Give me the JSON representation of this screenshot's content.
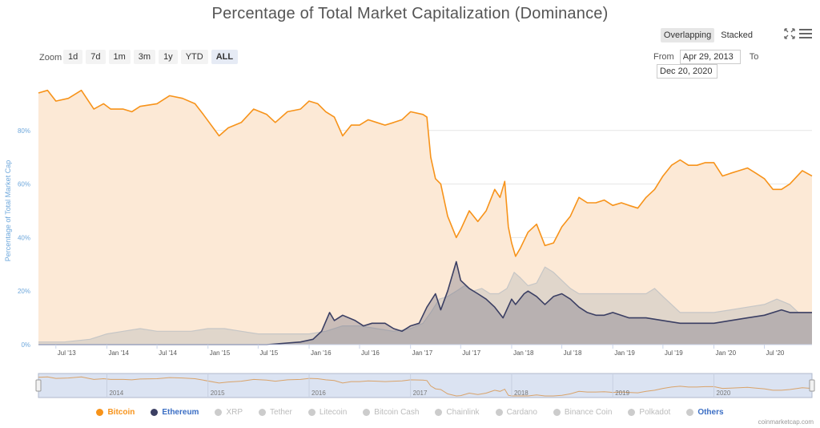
{
  "title": "Percentage of Total Market Capitalization (Dominance)",
  "toolbar": {
    "zoom_label": "Zoom",
    "zoom_buttons": [
      "1d",
      "7d",
      "1m",
      "3m",
      "1y",
      "YTD",
      "ALL"
    ],
    "active_zoom": "ALL",
    "mode_buttons": [
      "Overlapping",
      "Stacked"
    ],
    "active_mode": "Overlapping",
    "from_label": "From",
    "from_value": "Apr 29, 2013",
    "to_label": "To",
    "to_value": "Dec 20, 2020"
  },
  "credit": "coinmarketcap.com",
  "colors": {
    "bitcoin": "#f7931a",
    "ethereum": "#3b3f63",
    "others": "#c6c6c6",
    "bitcoin_fill": "#fce9d6",
    "navigator_bg": "#dbe3f2"
  },
  "legend": [
    {
      "name": "Bitcoin",
      "color": "#f7931a",
      "active": true
    },
    {
      "name": "Ethereum",
      "color": "#3b3f63",
      "active": true
    },
    {
      "name": "XRP",
      "color": "#cccccc",
      "active": false
    },
    {
      "name": "Tether",
      "color": "#cccccc",
      "active": false
    },
    {
      "name": "Litecoin",
      "color": "#cccccc",
      "active": false
    },
    {
      "name": "Bitcoin Cash",
      "color": "#cccccc",
      "active": false
    },
    {
      "name": "Chainlink",
      "color": "#cccccc",
      "active": false
    },
    {
      "name": "Cardano",
      "color": "#cccccc",
      "active": false
    },
    {
      "name": "Binance Coin",
      "color": "#cccccc",
      "active": false
    },
    {
      "name": "Polkadot",
      "color": "#cccccc",
      "active": false
    },
    {
      "name": "Others",
      "color": "#cccccc",
      "active": true
    }
  ],
  "chart_data": {
    "type": "area",
    "title": "Percentage of Total Market Capitalization (Dominance)",
    "ylabel": "Percentage of Total Market Cap",
    "xlim": [
      "2013-04-29",
      "2020-12-20"
    ],
    "ylim": [
      0,
      100
    ],
    "y_ticks": [
      "0%",
      "20%",
      "40%",
      "60%",
      "80%"
    ],
    "y_tick_values": [
      0,
      20,
      40,
      60,
      80
    ],
    "x_ticks": [
      {
        "date": "2013-07-01",
        "label": "Jul '13"
      },
      {
        "date": "2014-01-01",
        "label": "Jan '14"
      },
      {
        "date": "2014-07-01",
        "label": "Jul '14"
      },
      {
        "date": "2015-01-01",
        "label": "Jan '15"
      },
      {
        "date": "2015-07-01",
        "label": "Jul '15"
      },
      {
        "date": "2016-01-01",
        "label": "Jan '16"
      },
      {
        "date": "2016-07-01",
        "label": "Jul '16"
      },
      {
        "date": "2017-01-01",
        "label": "Jan '17"
      },
      {
        "date": "2017-07-01",
        "label": "Jul '17"
      },
      {
        "date": "2018-01-01",
        "label": "Jan '18"
      },
      {
        "date": "2018-07-01",
        "label": "Jul '18"
      },
      {
        "date": "2019-01-01",
        "label": "Jan '19"
      },
      {
        "date": "2019-07-01",
        "label": "Jul '19"
      },
      {
        "date": "2020-01-01",
        "label": "Jan '20"
      },
      {
        "date": "2020-07-01",
        "label": "Jul '20"
      }
    ],
    "navigator_labels": [
      "2014",
      "2015",
      "2016",
      "2017",
      "2018",
      "2019",
      "2020"
    ],
    "grid": true,
    "legend_position": "bottom",
    "series": [
      {
        "name": "Bitcoin",
        "color": "#f7931a",
        "points": [
          [
            "2013-04-29",
            94
          ],
          [
            "2013-06-01",
            95
          ],
          [
            "2013-07-01",
            91
          ],
          [
            "2013-08-15",
            92
          ],
          [
            "2013-10-01",
            95
          ],
          [
            "2013-11-15",
            88
          ],
          [
            "2013-12-20",
            90
          ],
          [
            "2014-01-15",
            88
          ],
          [
            "2014-03-01",
            88
          ],
          [
            "2014-04-01",
            87
          ],
          [
            "2014-05-01",
            89
          ],
          [
            "2014-07-01",
            90
          ],
          [
            "2014-08-15",
            93
          ],
          [
            "2014-10-01",
            92
          ],
          [
            "2014-11-15",
            90
          ],
          [
            "2014-12-15",
            86
          ],
          [
            "2015-02-10",
            78
          ],
          [
            "2015-03-15",
            81
          ],
          [
            "2015-05-01",
            83
          ],
          [
            "2015-06-15",
            88
          ],
          [
            "2015-08-01",
            86
          ],
          [
            "2015-09-01",
            83
          ],
          [
            "2015-10-15",
            87
          ],
          [
            "2015-12-01",
            88
          ],
          [
            "2016-01-01",
            91
          ],
          [
            "2016-02-01",
            90
          ],
          [
            "2016-03-01",
            87
          ],
          [
            "2016-04-01",
            85
          ],
          [
            "2016-05-01",
            78
          ],
          [
            "2016-06-01",
            82
          ],
          [
            "2016-07-01",
            82
          ],
          [
            "2016-08-01",
            84
          ],
          [
            "2016-09-01",
            83
          ],
          [
            "2016-10-01",
            82
          ],
          [
            "2016-11-01",
            83
          ],
          [
            "2016-12-01",
            84
          ],
          [
            "2017-01-01",
            87
          ],
          [
            "2017-02-15",
            86
          ],
          [
            "2017-03-01",
            85
          ],
          [
            "2017-03-15",
            70
          ],
          [
            "2017-04-01",
            62
          ],
          [
            "2017-04-20",
            60
          ],
          [
            "2017-05-15",
            48
          ],
          [
            "2017-06-15",
            40
          ],
          [
            "2017-07-01",
            43
          ],
          [
            "2017-08-01",
            50
          ],
          [
            "2017-09-01",
            46
          ],
          [
            "2017-10-01",
            50
          ],
          [
            "2017-11-01",
            58
          ],
          [
            "2017-11-20",
            55
          ],
          [
            "2017-12-07",
            61
          ],
          [
            "2017-12-20",
            44
          ],
          [
            "2018-01-01",
            38
          ],
          [
            "2018-01-15",
            33
          ],
          [
            "2018-02-01",
            36
          ],
          [
            "2018-03-01",
            42
          ],
          [
            "2018-04-01",
            45
          ],
          [
            "2018-05-01",
            37
          ],
          [
            "2018-06-01",
            38
          ],
          [
            "2018-07-01",
            44
          ],
          [
            "2018-08-01",
            48
          ],
          [
            "2018-09-01",
            55
          ],
          [
            "2018-10-01",
            53
          ],
          [
            "2018-11-01",
            53
          ],
          [
            "2018-12-01",
            54
          ],
          [
            "2019-01-01",
            52
          ],
          [
            "2019-02-01",
            53
          ],
          [
            "2019-03-01",
            52
          ],
          [
            "2019-04-01",
            51
          ],
          [
            "2019-05-01",
            55
          ],
          [
            "2019-06-01",
            58
          ],
          [
            "2019-07-01",
            63
          ],
          [
            "2019-08-01",
            67
          ],
          [
            "2019-09-01",
            69
          ],
          [
            "2019-10-01",
            67
          ],
          [
            "2019-11-01",
            67
          ],
          [
            "2019-12-01",
            68
          ],
          [
            "2020-01-01",
            68
          ],
          [
            "2020-02-01",
            63
          ],
          [
            "2020-03-01",
            64
          ],
          [
            "2020-04-01",
            65
          ],
          [
            "2020-05-01",
            66
          ],
          [
            "2020-06-01",
            64
          ],
          [
            "2020-07-01",
            62
          ],
          [
            "2020-08-01",
            58
          ],
          [
            "2020-09-01",
            58
          ],
          [
            "2020-10-01",
            60
          ],
          [
            "2020-11-15",
            65
          ],
          [
            "2020-12-20",
            63
          ]
        ]
      },
      {
        "name": "Ethereum",
        "color": "#3b3f63",
        "points": [
          [
            "2013-04-29",
            0
          ],
          [
            "2015-08-01",
            0
          ],
          [
            "2015-12-01",
            1
          ],
          [
            "2016-01-15",
            2
          ],
          [
            "2016-02-15",
            5
          ],
          [
            "2016-03-15",
            12
          ],
          [
            "2016-04-01",
            9
          ],
          [
            "2016-05-01",
            11
          ],
          [
            "2016-06-15",
            9
          ],
          [
            "2016-07-15",
            7
          ],
          [
            "2016-08-15",
            8
          ],
          [
            "2016-10-01",
            8
          ],
          [
            "2016-11-01",
            6
          ],
          [
            "2016-12-01",
            5
          ],
          [
            "2017-01-01",
            7
          ],
          [
            "2017-02-01",
            8
          ],
          [
            "2017-03-01",
            14
          ],
          [
            "2017-04-01",
            19
          ],
          [
            "2017-04-20",
            13
          ],
          [
            "2017-05-15",
            20
          ],
          [
            "2017-06-15",
            31
          ],
          [
            "2017-07-01",
            24
          ],
          [
            "2017-08-01",
            21
          ],
          [
            "2017-09-01",
            19
          ],
          [
            "2017-10-01",
            17
          ],
          [
            "2017-11-01",
            14
          ],
          [
            "2017-12-01",
            10
          ],
          [
            "2018-01-01",
            17
          ],
          [
            "2018-01-15",
            15
          ],
          [
            "2018-02-15",
            19
          ],
          [
            "2018-03-01",
            20
          ],
          [
            "2018-04-01",
            18
          ],
          [
            "2018-05-01",
            15
          ],
          [
            "2018-06-01",
            18
          ],
          [
            "2018-07-01",
            19
          ],
          [
            "2018-08-01",
            17
          ],
          [
            "2018-09-01",
            14
          ],
          [
            "2018-10-01",
            12
          ],
          [
            "2018-11-01",
            11
          ],
          [
            "2018-12-01",
            11
          ],
          [
            "2019-01-01",
            12
          ],
          [
            "2019-03-01",
            10
          ],
          [
            "2019-05-01",
            10
          ],
          [
            "2019-07-01",
            9
          ],
          [
            "2019-09-01",
            8
          ],
          [
            "2019-11-01",
            8
          ],
          [
            "2020-01-01",
            8
          ],
          [
            "2020-03-01",
            9
          ],
          [
            "2020-05-01",
            10
          ],
          [
            "2020-07-01",
            11
          ],
          [
            "2020-09-01",
            13
          ],
          [
            "2020-10-01",
            12
          ],
          [
            "2020-11-01",
            12
          ],
          [
            "2020-12-20",
            12
          ]
        ]
      },
      {
        "name": "Others",
        "color": "#c6c6c6",
        "points": [
          [
            "2013-04-29",
            1
          ],
          [
            "2013-08-01",
            1
          ],
          [
            "2013-11-01",
            2
          ],
          [
            "2014-01-01",
            4
          ],
          [
            "2014-03-01",
            5
          ],
          [
            "2014-05-01",
            6
          ],
          [
            "2014-07-01",
            5
          ],
          [
            "2014-09-01",
            5
          ],
          [
            "2014-11-01",
            5
          ],
          [
            "2015-01-01",
            6
          ],
          [
            "2015-03-01",
            6
          ],
          [
            "2015-05-01",
            5
          ],
          [
            "2015-07-01",
            4
          ],
          [
            "2015-09-01",
            4
          ],
          [
            "2015-11-01",
            4
          ],
          [
            "2016-01-01",
            4
          ],
          [
            "2016-03-01",
            5
          ],
          [
            "2016-05-01",
            7
          ],
          [
            "2016-07-01",
            7
          ],
          [
            "2016-09-01",
            6
          ],
          [
            "2016-11-01",
            5
          ],
          [
            "2017-01-01",
            6
          ],
          [
            "2017-02-15",
            8
          ],
          [
            "2017-03-15",
            12
          ],
          [
            "2017-04-15",
            17
          ],
          [
            "2017-05-15",
            18
          ],
          [
            "2017-06-15",
            20
          ],
          [
            "2017-07-15",
            22
          ],
          [
            "2017-08-15",
            20
          ],
          [
            "2017-09-15",
            21
          ],
          [
            "2017-10-15",
            19
          ],
          [
            "2017-11-15",
            19
          ],
          [
            "2017-12-15",
            21
          ],
          [
            "2018-01-10",
            27
          ],
          [
            "2018-02-01",
            25
          ],
          [
            "2018-03-01",
            22
          ],
          [
            "2018-04-01",
            23
          ],
          [
            "2018-05-01",
            29
          ],
          [
            "2018-06-01",
            27
          ],
          [
            "2018-07-01",
            24
          ],
          [
            "2018-08-01",
            21
          ],
          [
            "2018-09-01",
            19
          ],
          [
            "2018-11-01",
            19
          ],
          [
            "2019-01-01",
            19
          ],
          [
            "2019-03-01",
            19
          ],
          [
            "2019-05-01",
            19
          ],
          [
            "2019-06-01",
            21
          ],
          [
            "2019-07-01",
            18
          ],
          [
            "2019-09-01",
            12
          ],
          [
            "2019-11-01",
            12
          ],
          [
            "2020-01-01",
            12
          ],
          [
            "2020-03-01",
            13
          ],
          [
            "2020-05-01",
            14
          ],
          [
            "2020-07-01",
            15
          ],
          [
            "2020-08-15",
            17
          ],
          [
            "2020-10-01",
            15
          ],
          [
            "2020-11-01",
            12
          ],
          [
            "2020-12-20",
            12
          ]
        ]
      }
    ]
  }
}
